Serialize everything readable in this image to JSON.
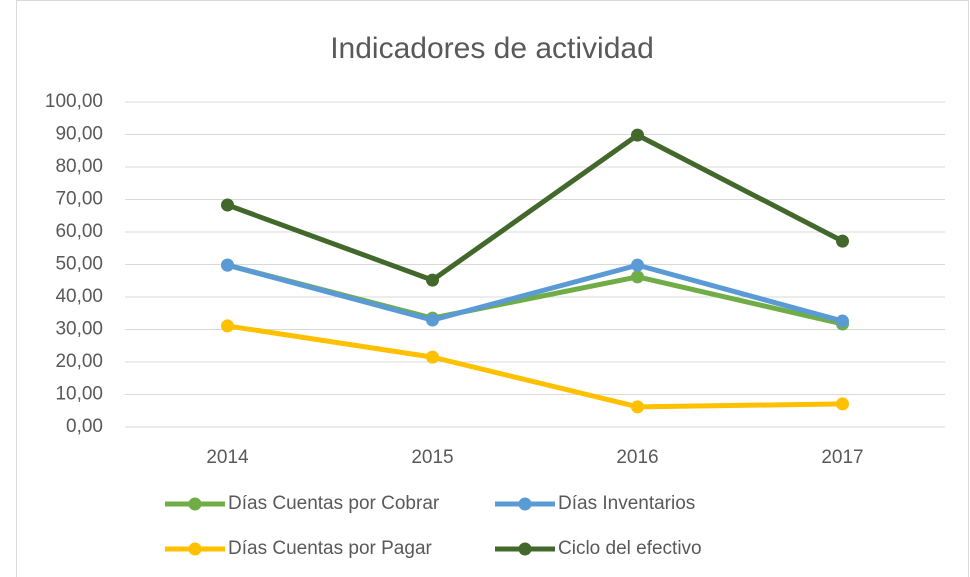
{
  "chart_data": {
    "type": "line",
    "title": "Indicadores de actividad",
    "categories": [
      "2014",
      "2015",
      "2016",
      "2017"
    ],
    "series": [
      {
        "name": "Días Cuentas por Cobrar",
        "color": "#70ad47",
        "values": [
          49.8,
          33.5,
          46.2,
          31.7
        ]
      },
      {
        "name": "Días Inventarios",
        "color": "#5b9bd5",
        "values": [
          49.8,
          32.9,
          49.8,
          32.6
        ]
      },
      {
        "name": "Días Cuentas por Pagar",
        "color": "#ffc000",
        "values": [
          31.1,
          21.5,
          6.2,
          7.1
        ]
      },
      {
        "name": "Ciclo del efectivo",
        "color": "#43682b",
        "values": [
          68.3,
          45.2,
          89.8,
          57.2
        ]
      }
    ],
    "ylim": [
      0,
      100
    ],
    "yticks": [
      {
        "value": 0,
        "label": "0,00"
      },
      {
        "value": 10,
        "label": "10,00"
      },
      {
        "value": 20,
        "label": "20,00"
      },
      {
        "value": 30,
        "label": "30,00"
      },
      {
        "value": 40,
        "label": "40,00"
      },
      {
        "value": 50,
        "label": "50,00"
      },
      {
        "value": 60,
        "label": "60,00"
      },
      {
        "value": 70,
        "label": "70,00"
      },
      {
        "value": 80,
        "label": "80,00"
      },
      {
        "value": 90,
        "label": "90,00"
      },
      {
        "value": 100,
        "label": "100,00"
      }
    ],
    "grid": true,
    "legend": "bottom"
  }
}
